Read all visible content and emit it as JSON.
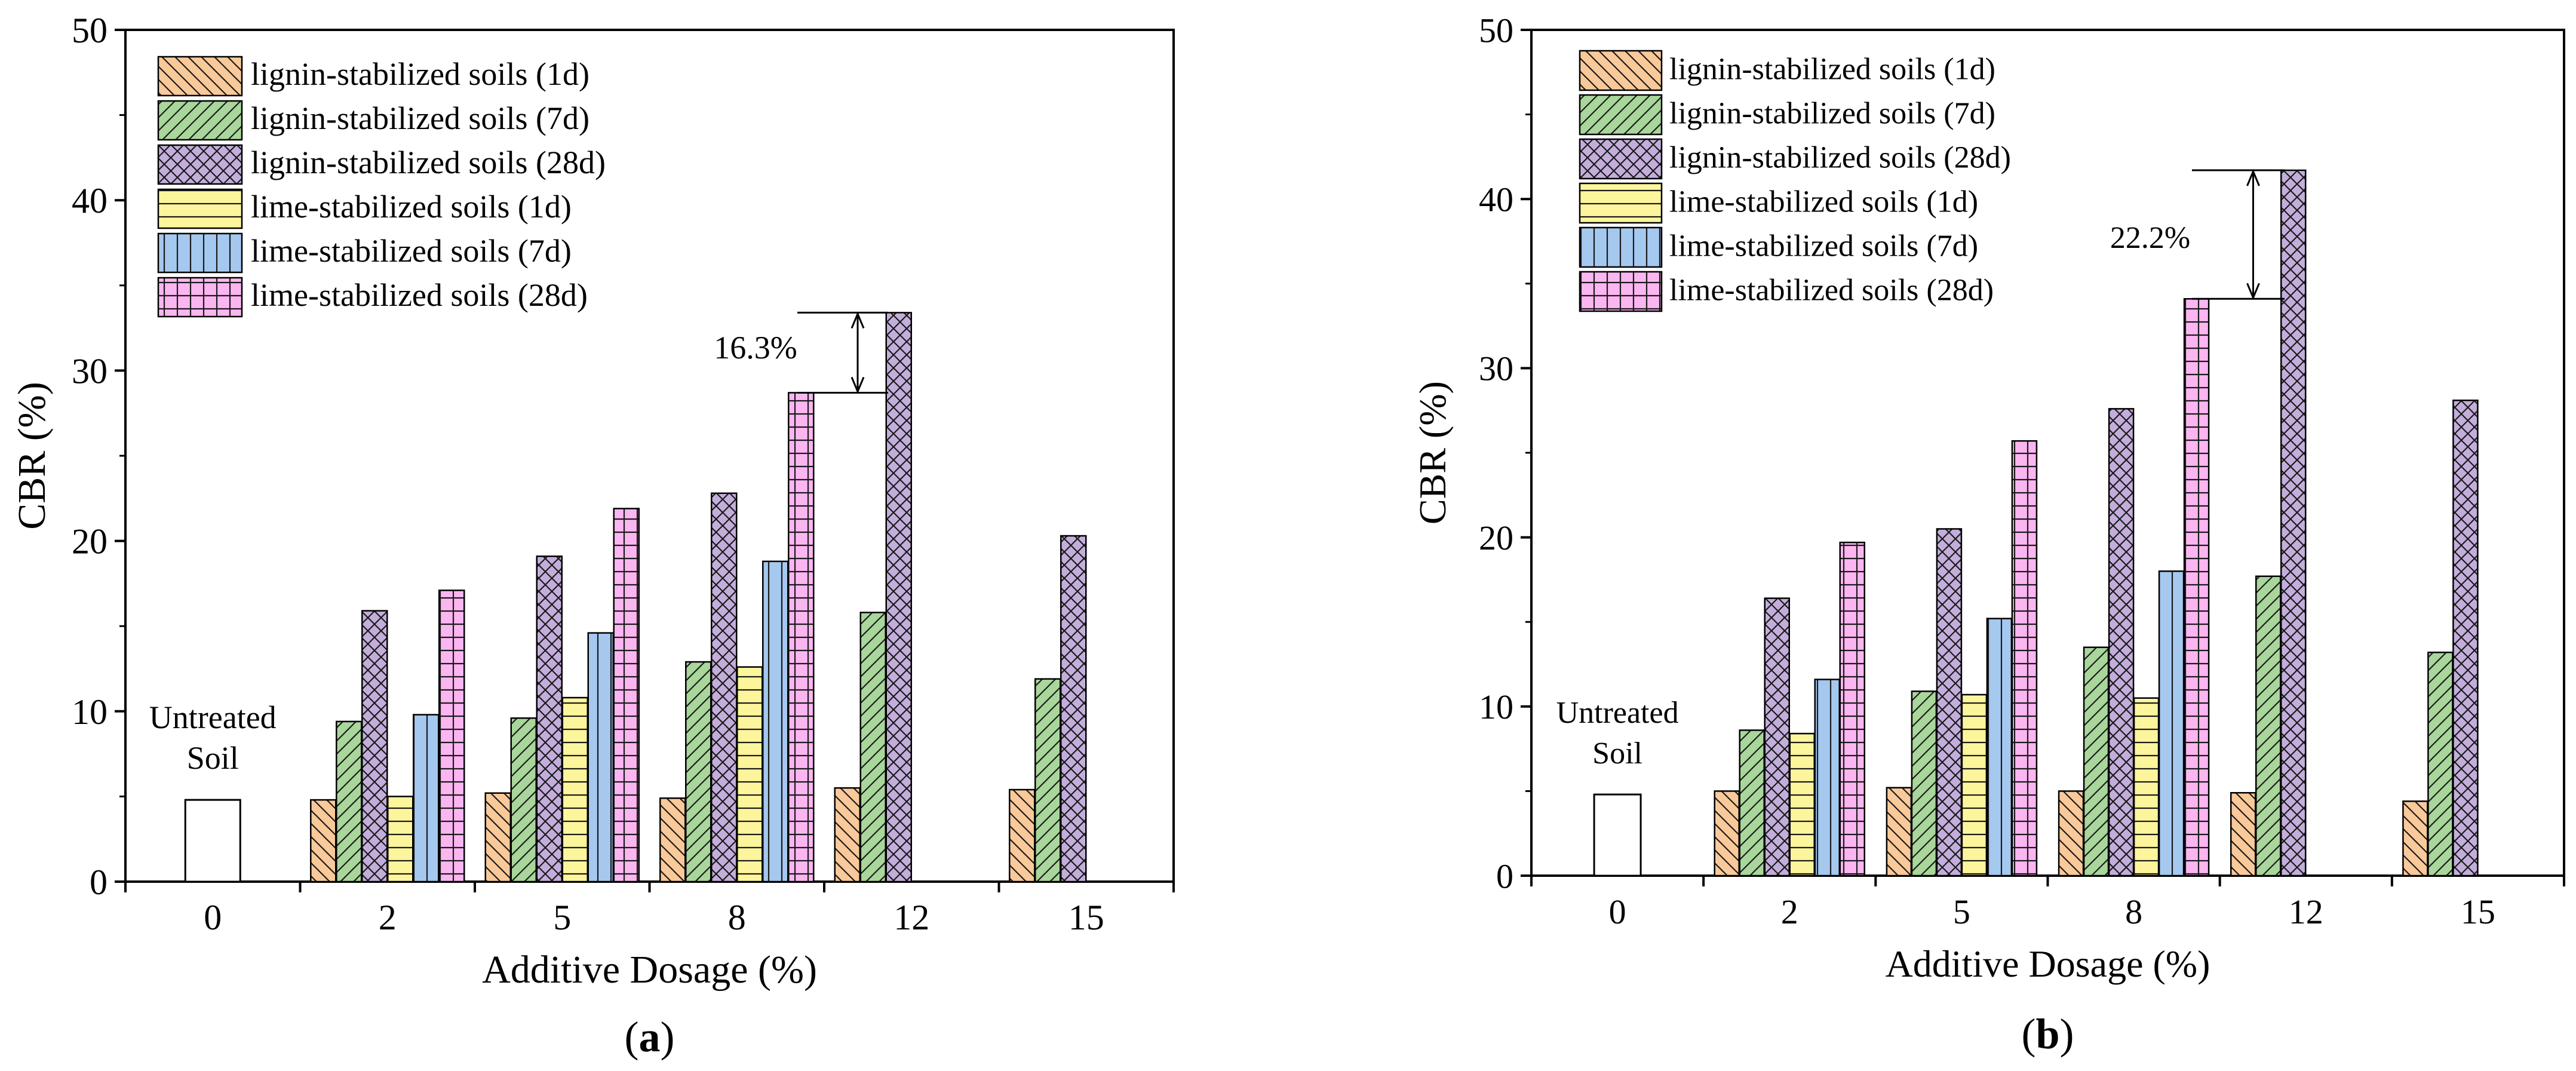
{
  "chart_data": [
    {
      "type": "bar",
      "panel_label": "a",
      "xlabel": "Additive Dosage (%)",
      "ylabel": "CBR (%)",
      "ylim": [
        0,
        50
      ],
      "yticks": [
        0,
        10,
        20,
        30,
        40,
        50
      ],
      "categories": [
        "0",
        "2",
        "5",
        "8",
        "12",
        "15"
      ],
      "untreated": {
        "label_line1": "Untreated",
        "label_line2": "Soil",
        "value": 4.8
      },
      "series": [
        {
          "name": "lignin-stabilized soils (1d)",
          "color": "#f9c999",
          "pattern": "back-diagonal",
          "values": [
            null,
            4.8,
            5.2,
            4.9,
            5.5,
            5.4
          ]
        },
        {
          "name": "lignin-stabilized soils (7d)",
          "color": "#a9d69b",
          "pattern": "diagonal",
          "values": [
            null,
            9.4,
            9.6,
            12.9,
            15.8,
            11.9
          ]
        },
        {
          "name": "lignin-stabilized soils (28d)",
          "color": "#c3aedb",
          "pattern": "cross",
          "values": [
            null,
            15.9,
            19.1,
            22.8,
            33.4,
            20.3
          ]
        },
        {
          "name": "lime-stabilized soils (1d)",
          "color": "#fdf59c",
          "pattern": "horizontal",
          "values": [
            null,
            5.0,
            10.8,
            12.6,
            null,
            null
          ]
        },
        {
          "name": "lime-stabilized soils (7d)",
          "color": "#a5c8ef",
          "pattern": "vertical",
          "values": [
            null,
            9.8,
            14.6,
            18.8,
            null,
            null
          ]
        },
        {
          "name": "lime-stabilized soils (28d)",
          "color": "#fbb6f1",
          "pattern": "grid",
          "values": [
            null,
            17.1,
            21.9,
            28.7,
            null,
            null
          ]
        }
      ],
      "annotation": {
        "text": "16.3%",
        "from_value": 28.7,
        "to_value": 33.4
      }
    },
    {
      "type": "bar",
      "panel_label": "b",
      "xlabel": "Additive Dosage (%)",
      "ylabel": "CBR (%)",
      "ylim": [
        0,
        50
      ],
      "yticks": [
        0,
        10,
        20,
        30,
        40,
        50
      ],
      "categories": [
        "0",
        "2",
        "5",
        "8",
        "12",
        "15"
      ],
      "untreated": {
        "label_line1": "Untreated",
        "label_line2": "Soil",
        "value": 4.8
      },
      "series": [
        {
          "name": "lignin-stabilized soils (1d)",
          "color": "#f9c999",
          "pattern": "back-diagonal",
          "values": [
            null,
            5.0,
            5.2,
            5.0,
            4.9,
            4.4
          ]
        },
        {
          "name": "lignin-stabilized soils (7d)",
          "color": "#a9d69b",
          "pattern": "diagonal",
          "values": [
            null,
            8.6,
            10.9,
            13.5,
            17.7,
            13.2
          ]
        },
        {
          "name": "lignin-stabilized soils (28d)",
          "color": "#c3aedb",
          "pattern": "cross",
          "values": [
            null,
            16.4,
            20.5,
            27.6,
            41.7,
            28.1
          ]
        },
        {
          "name": "lime-stabilized soils (1d)",
          "color": "#fdf59c",
          "pattern": "horizontal",
          "values": [
            null,
            8.4,
            10.7,
            10.5,
            null,
            null
          ]
        },
        {
          "name": "lime-stabilized soils (7d)",
          "color": "#a5c8ef",
          "pattern": "vertical",
          "values": [
            null,
            11.6,
            15.2,
            18.0,
            null,
            null
          ]
        },
        {
          "name": "lime-stabilized soils (28d)",
          "color": "#fbb6f1",
          "pattern": "grid",
          "values": [
            null,
            19.7,
            25.7,
            34.1,
            null,
            null
          ]
        }
      ],
      "annotation": {
        "text": "22.2%",
        "from_value": 34.1,
        "to_value": 41.7
      }
    }
  ]
}
